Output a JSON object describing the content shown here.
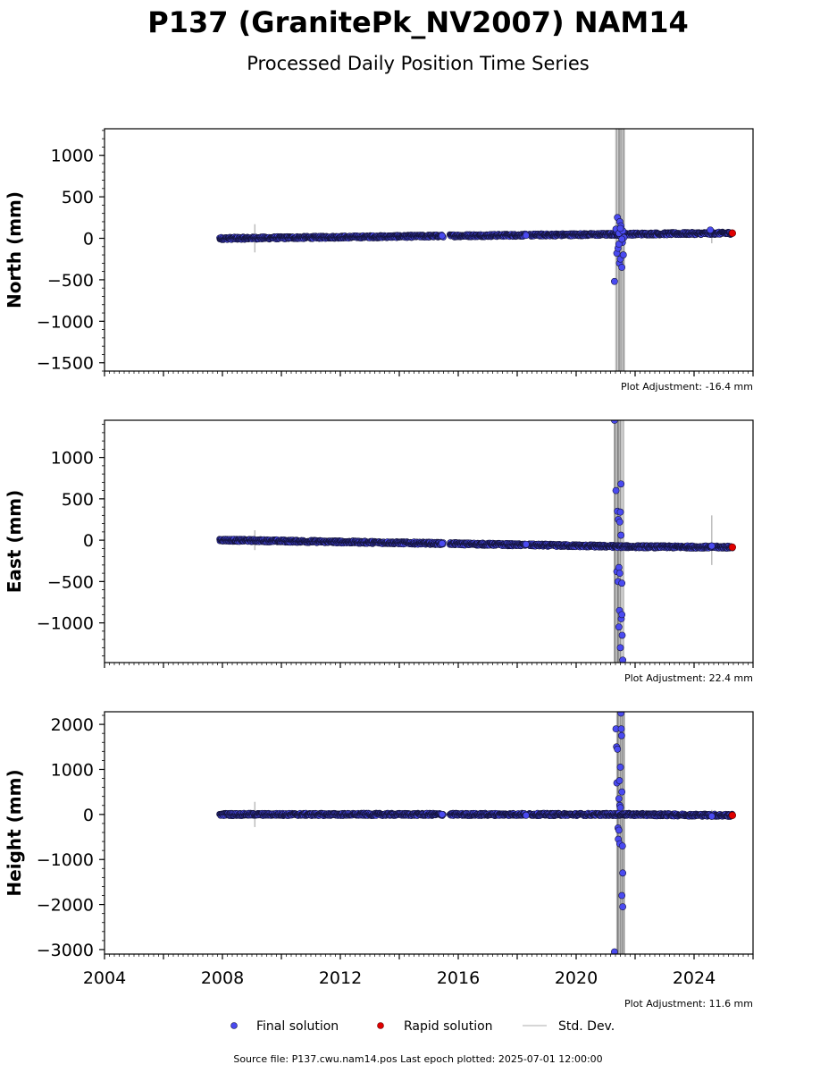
{
  "header": {
    "title": "P137 (GranitePk_NV2007) NAM14",
    "subtitle": "Processed Daily Position Time Series"
  },
  "legend": {
    "final_label": "Final solution",
    "rapid_label": "Rapid solution",
    "std_label": "Std. Dev."
  },
  "footer": {
    "source": "Source file: P137.cwu.nam14.pos  Last epoch plotted: 2025-07-01 12:00:00"
  },
  "colors": {
    "final": "#4a4af0",
    "final_edge": "#14143c",
    "rapid": "#e00000",
    "std": "#bdbdbd",
    "std_dark": "#5a5a5a"
  },
  "chart_data": [
    {
      "type": "scatter",
      "ylabel": "North (mm)",
      "adjustment": "Plot Adjustment: -16.4 mm",
      "xlim": [
        2004,
        2026
      ],
      "ylim": [
        -1600,
        1320
      ],
      "yticks": [
        1000,
        500,
        0,
        -500,
        -1000,
        -1500
      ],
      "xticks": [
        2004,
        2008,
        2012,
        2016,
        2020,
        2024
      ],
      "show_xtick_labels": false,
      "trend": [
        [
          2007.9,
          -2
        ],
        [
          2015.4,
          28
        ],
        [
          2015.7,
          30
        ],
        [
          2021.3,
          48
        ],
        [
          2021.6,
          50
        ],
        [
          2025.3,
          62
        ]
      ],
      "gaps": [
        [
          2015.5,
          2015.7
        ],
        [
          2018.3,
          2018.4
        ]
      ],
      "gap_end_points": [
        [
          2015.45,
          30
        ],
        [
          2018.3,
          35
        ],
        [
          2024.55,
          100
        ]
      ],
      "outliers": [
        [
          2021.3,
          -520
        ],
        [
          2021.35,
          110
        ],
        [
          2021.38,
          -180
        ],
        [
          2021.4,
          250
        ],
        [
          2021.42,
          -120
        ],
        [
          2021.45,
          60
        ],
        [
          2021.47,
          -300
        ],
        [
          2021.48,
          200
        ],
        [
          2021.5,
          -250
        ],
        [
          2021.52,
          150
        ],
        [
          2021.55,
          -350
        ],
        [
          2021.57,
          -50
        ],
        [
          2021.58,
          90
        ],
        [
          2021.6,
          -200
        ],
        [
          2021.62,
          10
        ],
        [
          2021.45,
          -70
        ],
        [
          2021.5,
          120
        ],
        [
          2021.55,
          -10
        ]
      ],
      "rapid": [
        [
          2025.3,
          62
        ]
      ],
      "std_spikes": [
        [
          2009.1,
          170
        ],
        [
          2024.6,
          60
        ]
      ],
      "std_band": [
        2021.3,
        2021.65
      ]
    },
    {
      "type": "scatter",
      "ylabel": "East (mm)",
      "adjustment": "Plot Adjustment: 22.4 mm",
      "xlim": [
        2004,
        2026
      ],
      "ylim": [
        -1480,
        1450
      ],
      "yticks": [
        1000,
        500,
        0,
        -500,
        -1000
      ],
      "xticks": [
        2004,
        2008,
        2012,
        2016,
        2020,
        2024
      ],
      "show_xtick_labels": false,
      "trend": [
        [
          2007.9,
          2
        ],
        [
          2015.4,
          -40
        ],
        [
          2015.7,
          -42
        ],
        [
          2021.3,
          -75
        ],
        [
          2021.6,
          -78
        ],
        [
          2025.3,
          -85
        ]
      ],
      "gaps": [
        [
          2015.5,
          2015.7
        ],
        [
          2018.3,
          2018.4
        ]
      ],
      "gap_end_points": [
        [
          2015.45,
          -40
        ],
        [
          2018.3,
          -50
        ],
        [
          2024.6,
          -70
        ]
      ],
      "outliers": [
        [
          2021.3,
          1450
        ],
        [
          2021.35,
          600
        ],
        [
          2021.38,
          -380
        ],
        [
          2021.4,
          350
        ],
        [
          2021.42,
          -500
        ],
        [
          2021.43,
          250
        ],
        [
          2021.45,
          -1050
        ],
        [
          2021.47,
          -850
        ],
        [
          2021.48,
          220
        ],
        [
          2021.5,
          -1300
        ],
        [
          2021.52,
          680
        ],
        [
          2021.53,
          -950
        ],
        [
          2021.55,
          -900
        ],
        [
          2021.56,
          -1150
        ],
        [
          2021.58,
          -1450
        ],
        [
          2021.5,
          340
        ],
        [
          2021.45,
          -330
        ],
        [
          2021.55,
          -520
        ],
        [
          2021.48,
          -400
        ],
        [
          2021.52,
          60
        ]
      ],
      "rapid": [
        [
          2025.3,
          -85
        ]
      ],
      "std_spikes": [
        [
          2009.1,
          120
        ],
        [
          2024.6,
          300
        ]
      ],
      "std_band": [
        2021.3,
        2021.65
      ]
    },
    {
      "type": "scatter",
      "ylabel": "Height (mm)",
      "adjustment": "Plot Adjustment: 11.6 mm",
      "xlim": [
        2004,
        2026
      ],
      "ylim": [
        -3100,
        2280
      ],
      "yticks": [
        2000,
        1000,
        0,
        -1000,
        -2000,
        -3000
      ],
      "xticks": [
        2004,
        2008,
        2012,
        2016,
        2020,
        2024
      ],
      "show_xtick_labels": true,
      "trend": [
        [
          2007.9,
          0
        ],
        [
          2015.4,
          0
        ],
        [
          2015.7,
          0
        ],
        [
          2021.3,
          0
        ],
        [
          2021.6,
          0
        ],
        [
          2025.3,
          -20
        ]
      ],
      "gaps": [
        [
          2015.5,
          2015.7
        ],
        [
          2018.3,
          2018.4
        ]
      ],
      "gap_end_points": [
        [
          2015.45,
          0
        ],
        [
          2018.3,
          -20
        ],
        [
          2024.6,
          -40
        ]
      ],
      "outliers": [
        [
          2021.3,
          -3050
        ],
        [
          2021.35,
          1900
        ],
        [
          2021.37,
          1500
        ],
        [
          2021.38,
          700
        ],
        [
          2021.4,
          1450
        ],
        [
          2021.42,
          -300
        ],
        [
          2021.43,
          -550
        ],
        [
          2021.45,
          350
        ],
        [
          2021.47,
          750
        ],
        [
          2021.48,
          -650
        ],
        [
          2021.5,
          1050
        ],
        [
          2021.52,
          2250
        ],
        [
          2021.53,
          1900
        ],
        [
          2021.54,
          1750
        ],
        [
          2021.55,
          500
        ],
        [
          2021.57,
          -700
        ],
        [
          2021.58,
          -1300
        ],
        [
          2021.55,
          -1800
        ],
        [
          2021.58,
          -2050
        ],
        [
          2021.48,
          200
        ],
        [
          2021.45,
          -350
        ],
        [
          2021.5,
          150
        ]
      ],
      "rapid": [
        [
          2025.3,
          -20
        ]
      ],
      "std_spikes": [
        [
          2009.1,
          280
        ],
        [
          2024.6,
          100
        ]
      ],
      "std_band": [
        2021.3,
        2021.65
      ]
    }
  ]
}
